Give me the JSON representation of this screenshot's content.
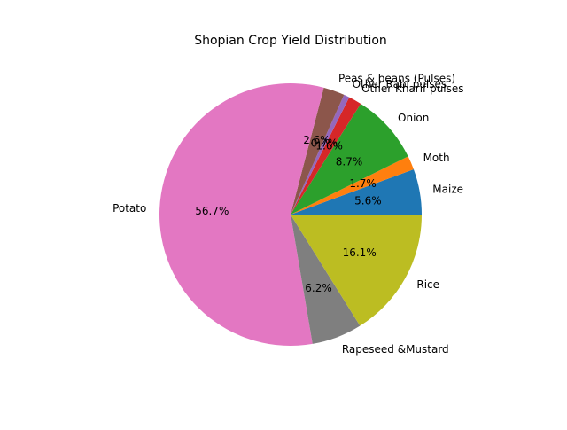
{
  "chart_data": {
    "type": "pie",
    "title": "Shopian Crop Yield Distribution",
    "start_angle": "0 degrees (3 o'clock), counterclockwise",
    "categories": [
      "Maize",
      "Moth",
      "Onion",
      "Other Kharif pulses",
      "Other Rabi pulses",
      "Peas & beans (Pulses)",
      "Potato",
      "Rapeseed &Mustard",
      "Rice"
    ],
    "values": [
      5.6,
      1.7,
      8.7,
      1.6,
      0.7,
      2.6,
      56.7,
      6.2,
      16.1
    ],
    "percent_labels": [
      "5.6%",
      "1.7%",
      "8.7%",
      "1.6%",
      "0.7%",
      "2.6%",
      "56.7%",
      "6.2%",
      "16.1%"
    ],
    "colors": [
      "#1f77b4",
      "#ff7f0e",
      "#2ca02c",
      "#d62728",
      "#9467bd",
      "#8c564b",
      "#e377c2",
      "#7f7f7f",
      "#bcbd22"
    ],
    "legend": "none (slice labels placed outside the pie)"
  }
}
